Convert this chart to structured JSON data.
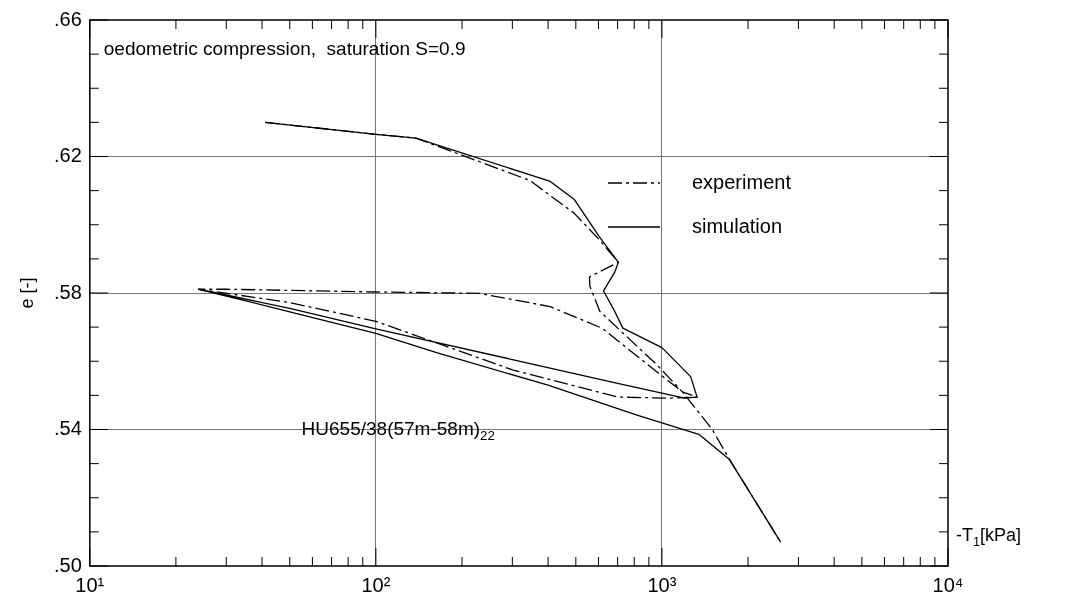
{
  "chart_data": {
    "type": "line",
    "xlabel": "-T$_{1}$[kPa]",
    "ylabel": "e [-]",
    "annotations": [
      "oedometric compression,  saturation S=0.9",
      "HU655/38(57m-58m)$_{22}$"
    ],
    "log": "x",
    "grid": true,
    "legend": "right",
    "marker": "none",
    "xlim": [
      10,
      10000
    ],
    "xticks": [
      {
        "value": 10,
        "label": "10¹"
      },
      {
        "value": 20,
        "label": null
      },
      {
        "value": 30,
        "label": null
      },
      {
        "value": 40,
        "label": null
      },
      {
        "value": 50,
        "label": null
      },
      {
        "value": 60,
        "label": null
      },
      {
        "value": 70,
        "label": null
      },
      {
        "value": 80,
        "label": null
      },
      {
        "value": 90,
        "label": null
      },
      {
        "value": 100,
        "label": "10²"
      },
      {
        "value": 200,
        "label": null
      },
      {
        "value": 300,
        "label": null
      },
      {
        "value": 400,
        "label": null
      },
      {
        "value": 500,
        "label": null
      },
      {
        "value": 600,
        "label": null
      },
      {
        "value": 700,
        "label": null
      },
      {
        "value": 800,
        "label": null
      },
      {
        "value": 900,
        "label": null
      },
      {
        "value": 1000,
        "label": "10³"
      },
      {
        "value": 2000,
        "label": null
      },
      {
        "value": 3000,
        "label": null
      },
      {
        "value": 4000,
        "label": null
      },
      {
        "value": 5000,
        "label": null
      },
      {
        "value": 6000,
        "label": null
      },
      {
        "value": 7000,
        "label": null
      },
      {
        "value": 8000,
        "label": null
      },
      {
        "value": 9000,
        "label": null
      },
      {
        "value": 10000,
        "label": "10⁴"
      }
    ],
    "ylim": [
      0.5,
      0.66
    ],
    "yticks": [
      {
        "value": 0.5,
        "label": ".50"
      },
      {
        "value": 0.51,
        "label": null
      },
      {
        "value": 0.52,
        "label": null
      },
      {
        "value": 0.53,
        "label": null
      },
      {
        "value": 0.54,
        "label": ".54"
      },
      {
        "value": 0.55,
        "label": null
      },
      {
        "value": 0.56,
        "label": null
      },
      {
        "value": 0.57,
        "label": null
      },
      {
        "value": 0.58,
        "label": ".58"
      },
      {
        "value": 0.59,
        "label": null
      },
      {
        "value": 0.6,
        "label": null
      },
      {
        "value": 0.61,
        "label": null
      },
      {
        "value": 0.62,
        "label": ".62"
      },
      {
        "value": 0.63,
        "label": null
      },
      {
        "value": 0.64,
        "label": null
      },
      {
        "value": 0.65,
        "label": null
      },
      {
        "value": 0.66,
        "label": ".66"
      }
    ],
    "series": [
      {
        "name": "experiment",
        "color": "#000000",
        "line_style": "dashed",
        "x": [
          41,
          100,
          138,
          345,
          493,
          603,
          704,
          558,
          560,
          607,
          959,
          1180,
          1327,
          1050,
          700,
          300,
          100,
          50,
          24,
          30,
          100,
          230,
          407,
          617,
          940,
          1180,
          1500,
          1720,
          2600
        ],
        "values": [
          0.63,
          0.6265,
          0.6254,
          0.613,
          0.6034,
          0.5957,
          0.589,
          0.5847,
          0.582,
          0.5746,
          0.559,
          0.551,
          0.5495,
          0.5492,
          0.5495,
          0.5575,
          0.5717,
          0.5772,
          0.5811,
          0.5811,
          0.5803,
          0.5799,
          0.576,
          0.5697,
          0.5575,
          0.551,
          0.54,
          0.5313,
          0.507
        ]
      },
      {
        "name": "simulation",
        "color": "#000000",
        "line_style": "solid",
        "x": [
          41,
          100,
          138,
          407,
          493,
          603,
          704,
          684,
          625,
          684,
          730,
          1000,
          1260,
          1327,
          1200,
          700,
          300,
          100,
          50,
          24,
          50,
          100,
          163,
          400,
          813,
          1346,
          1718,
          2600
        ],
        "values": [
          0.63,
          0.6265,
          0.6254,
          0.6127,
          0.6075,
          0.5966,
          0.589,
          0.5861,
          0.5806,
          0.5746,
          0.5697,
          0.564,
          0.5555,
          0.5495,
          0.5492,
          0.5535,
          0.5605,
          0.5695,
          0.5755,
          0.5811,
          0.5745,
          0.5682,
          0.5625,
          0.553,
          0.5443,
          0.5386,
          0.5313,
          0.507
        ]
      }
    ]
  }
}
